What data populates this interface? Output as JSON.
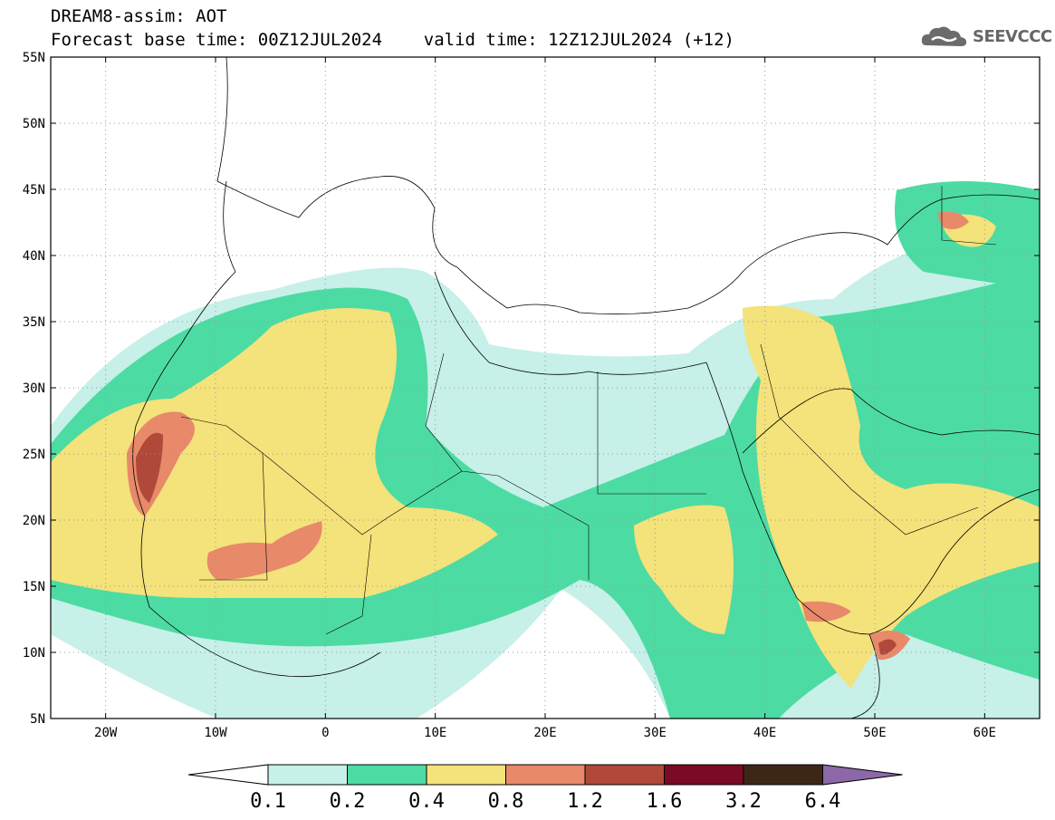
{
  "header": {
    "line1": "DREAM8-assim: AOT",
    "line2": "Forecast base time: 00Z12JUL2024    valid time: 12Z12JUL2024 (+12)"
  },
  "logo": {
    "text": "SEEVCCC",
    "icon": "cloud-icon",
    "color": "#666666"
  },
  "map": {
    "lon_range": [
      -25,
      65
    ],
    "lat_range": [
      5,
      55
    ],
    "lon_ticks": [
      {
        "value": -20,
        "label": "20W"
      },
      {
        "value": -10,
        "label": "10W"
      },
      {
        "value": 0,
        "label": "0"
      },
      {
        "value": 10,
        "label": "10E"
      },
      {
        "value": 20,
        "label": "20E"
      },
      {
        "value": 30,
        "label": "30E"
      },
      {
        "value": 40,
        "label": "40E"
      },
      {
        "value": 50,
        "label": "50E"
      },
      {
        "value": 60,
        "label": "60E"
      }
    ],
    "lat_ticks": [
      {
        "value": 55,
        "label": "55N"
      },
      {
        "value": 50,
        "label": "50N"
      },
      {
        "value": 45,
        "label": "45N"
      },
      {
        "value": 40,
        "label": "40N"
      },
      {
        "value": 35,
        "label": "35N"
      },
      {
        "value": 30,
        "label": "30N"
      },
      {
        "value": 25,
        "label": "25N"
      },
      {
        "value": 20,
        "label": "20N"
      },
      {
        "value": 15,
        "label": "15N"
      },
      {
        "value": 10,
        "label": "10N"
      },
      {
        "value": 5,
        "label": "5N"
      }
    ],
    "grid": "dotted"
  },
  "colorbar": {
    "bounds": [
      "0.1",
      "0.2",
      "0.4",
      "0.8",
      "1.2",
      "1.6",
      "3.2",
      "6.4"
    ],
    "colors": [
      "#ffffff",
      "#c6f0e8",
      "#4ddba4",
      "#f4e27a",
      "#e8896a",
      "#b0493a",
      "#7a0a25",
      "#3e2617",
      "#8c68a8"
    ]
  }
}
